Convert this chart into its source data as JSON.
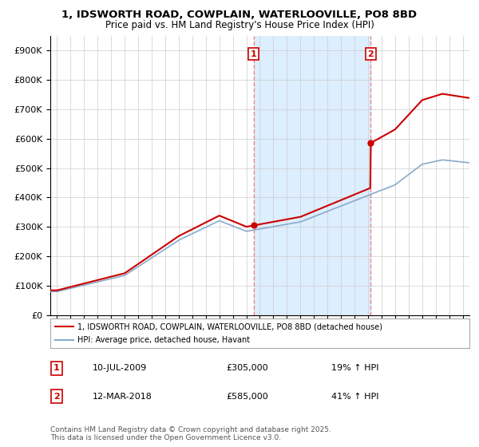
{
  "title1": "1, IDSWORTH ROAD, COWPLAIN, WATERLOOVILLE, PO8 8BD",
  "title2": "Price paid vs. HM Land Registry's House Price Index (HPI)",
  "legend_line1": "1, IDSWORTH ROAD, COWPLAIN, WATERLOOVILLE, PO8 8BD (detached house)",
  "legend_line2": "HPI: Average price, detached house, Havant",
  "transaction1_label": "1",
  "transaction1_date": "10-JUL-2009",
  "transaction1_price": "£305,000",
  "transaction1_hpi": "19% ↑ HPI",
  "transaction2_label": "2",
  "transaction2_date": "12-MAR-2018",
  "transaction2_price": "£585,000",
  "transaction2_hpi": "41% ↑ HPI",
  "footer": "Contains HM Land Registry data © Crown copyright and database right 2025.\nThis data is licensed under the Open Government Licence v3.0.",
  "vline1_x": 2009.54,
  "vline2_x": 2018.19,
  "dot1_x": 2009.54,
  "dot1_y": 305000,
  "dot2_x": 2018.19,
  "dot2_y": 585000,
  "red_color": "#cc0000",
  "blue_color": "#88aacc",
  "vline_color": "#ee8888",
  "span_color": "#ddeeff",
  "plot_bg": "#ffffff",
  "ylim": [
    0,
    950000
  ],
  "xlim": [
    1994.5,
    2025.5
  ],
  "yticks": [
    0,
    100000,
    200000,
    300000,
    400000,
    500000,
    600000,
    700000,
    800000,
    900000
  ],
  "xtick_start": 1995,
  "xtick_end": 2025
}
